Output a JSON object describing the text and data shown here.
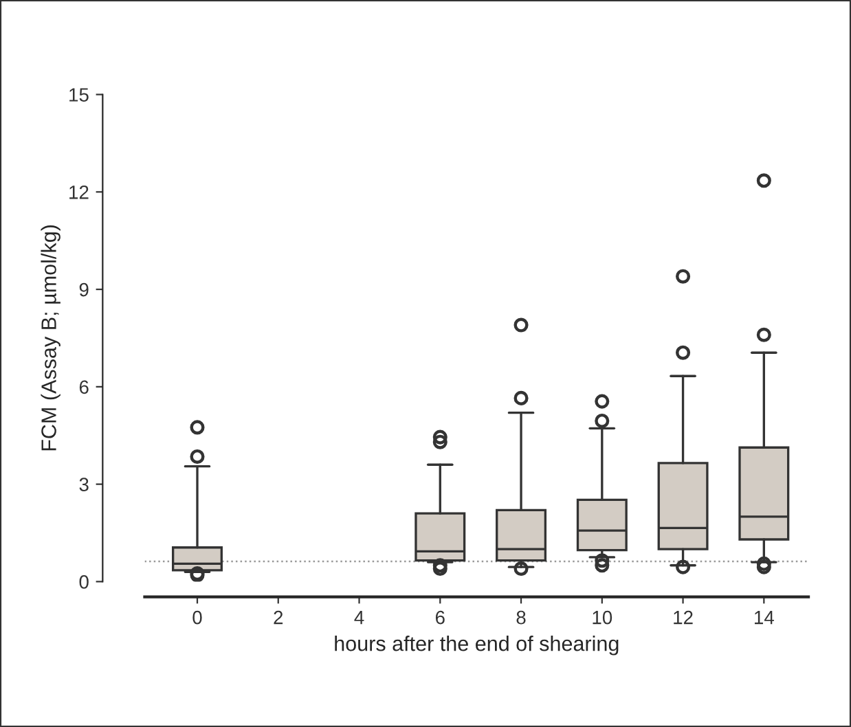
{
  "chart_data": {
    "type": "box",
    "xlabel": "hours after the end of shearing",
    "ylabel": "FCM (Assay B; µmol/kg)",
    "x": [
      0,
      6,
      8,
      10,
      12,
      14
    ],
    "color": "#d3ccc4",
    "boxes": [
      {
        "low": 0.3,
        "q1": 0.35,
        "median": 0.55,
        "q3": 1.05,
        "high": 3.55,
        "outliers": [
          4.75,
          3.85,
          0.25,
          0.2
        ]
      },
      {
        "low": 0.6,
        "q1": 0.65,
        "median": 0.93,
        "q3": 2.1,
        "high": 3.6,
        "outliers": [
          4.45,
          4.3,
          0.5,
          0.4
        ]
      },
      {
        "low": 0.45,
        "q1": 0.65,
        "median": 1.0,
        "q3": 2.2,
        "high": 5.2,
        "outliers": [
          7.9,
          5.65,
          0.4
        ]
      },
      {
        "low": 0.75,
        "q1": 0.97,
        "median": 1.57,
        "q3": 2.52,
        "high": 4.72,
        "outliers": [
          5.55,
          4.95,
          0.65,
          0.5
        ]
      },
      {
        "low": 0.5,
        "q1": 1.0,
        "median": 1.65,
        "q3": 3.65,
        "high": 6.33,
        "outliers": [
          9.4,
          7.05,
          0.45
        ]
      },
      {
        "low": 0.6,
        "q1": 1.3,
        "median": 2.0,
        "q3": 4.13,
        "high": 7.05,
        "outliers": [
          12.35,
          7.6,
          0.55,
          0.45
        ]
      }
    ],
    "xlim": [
      -1.3,
      15.1
    ],
    "xticks": [
      0,
      2,
      4,
      6,
      8,
      10,
      12,
      14
    ],
    "ylim": [
      0,
      15
    ],
    "yticks": [
      0,
      3,
      6,
      9,
      12,
      15
    ],
    "ref_lines": [
      {
        "axis": "y",
        "value": 0.62,
        "color": "#999999",
        "line_style": "dotted"
      }
    ],
    "grid": false,
    "legend": false
  }
}
